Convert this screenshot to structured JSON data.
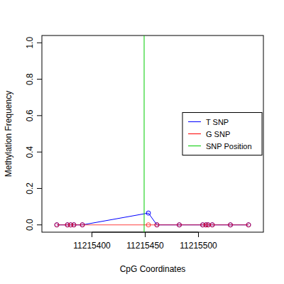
{
  "chart_data": {
    "type": "line",
    "x_label": "CpG Coordinates",
    "y_label": "Methylation Frequency",
    "xlim": [
      11215353,
      11215561
    ],
    "xticks": [
      11215400,
      11215450,
      11215500
    ],
    "ylim": [
      -0.04,
      1.04
    ],
    "yticks": [
      {
        "value": 0,
        "label": "0.0"
      },
      {
        "value": 0.2,
        "label": "0.2"
      },
      {
        "value": 0.4,
        "label": "0.4"
      },
      {
        "value": 0.6,
        "label": "0.6"
      },
      {
        "value": 0.8,
        "label": "0.8"
      },
      {
        "value": 1,
        "label": "1.0"
      }
    ],
    "legend": "right",
    "grid": false,
    "series": [
      {
        "name": "T SNP",
        "color": "#0000ff",
        "marker": "circle",
        "line_style": "solid",
        "x": [
          11215367,
          11215377,
          11215380,
          11215383,
          11215391,
          11215453,
          11215461,
          11215482,
          11215504,
          11215507,
          11215509,
          11215513,
          11215530,
          11215547
        ],
        "values": [
          0,
          0,
          0,
          0,
          0,
          0.065,
          0,
          0,
          0,
          0,
          0,
          0,
          0,
          0
        ]
      },
      {
        "name": "G SNP",
        "color": "#ff0000",
        "marker": "circle",
        "line_style": "solid",
        "x": [
          11215367,
          11215377,
          11215380,
          11215383,
          11215391,
          11215453,
          11215461,
          11215482,
          11215504,
          11215507,
          11215509,
          11215513,
          11215530,
          11215547
        ],
        "values": [
          0,
          0,
          0,
          0,
          0,
          0,
          0,
          0,
          0,
          0,
          0,
          0,
          0,
          0
        ]
      },
      {
        "name": "SNP Position",
        "color": "#00cc00",
        "type": "vline",
        "line_style": "solid",
        "x": [
          11215449
        ]
      }
    ]
  }
}
